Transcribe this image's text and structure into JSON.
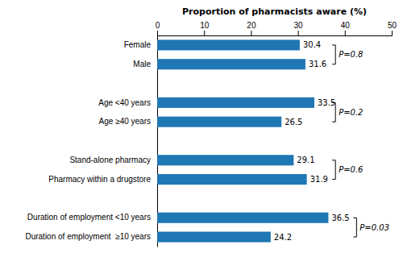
{
  "chart_data": {
    "type": "bar",
    "orientation": "horizontal",
    "x_label": "Proportion of pharmacists aware (%)",
    "categories": [
      "Female",
      "Male",
      null,
      "Age <40 years",
      "Age ≥40 years",
      null,
      "Stand-alone pharmacy",
      "Pharmacy within a drugstore",
      null,
      "Duration of employment <10 years",
      "Duration of employment  ≥10 years"
    ],
    "values": [
      30.4,
      31.6,
      null,
      33.5,
      26.5,
      null,
      29.1,
      31.9,
      null,
      36.5,
      24.2
    ],
    "xlim": [
      0,
      50
    ],
    "xticks": [
      0,
      10,
      20,
      30,
      40,
      50
    ],
    "data_labels": true,
    "grid": false,
    "annotations": [
      {
        "text": "P=0.8",
        "x": 38.0,
        "between": [
          "Female",
          "Male"
        ]
      },
      {
        "text": "P=0.2",
        "x": 38.0,
        "between": [
          "Age <40 years",
          "Age ≥40 years"
        ]
      },
      {
        "text": "P=0.6",
        "x": 38.0,
        "between": [
          "Stand-alone pharmacy",
          "Pharmacy within a drugstore"
        ]
      },
      {
        "text": "P=0.03",
        "x": 42.5,
        "between": [
          "Duration of employment <10 years",
          "Duration of employment  ≥10 years"
        ]
      }
    ]
  }
}
